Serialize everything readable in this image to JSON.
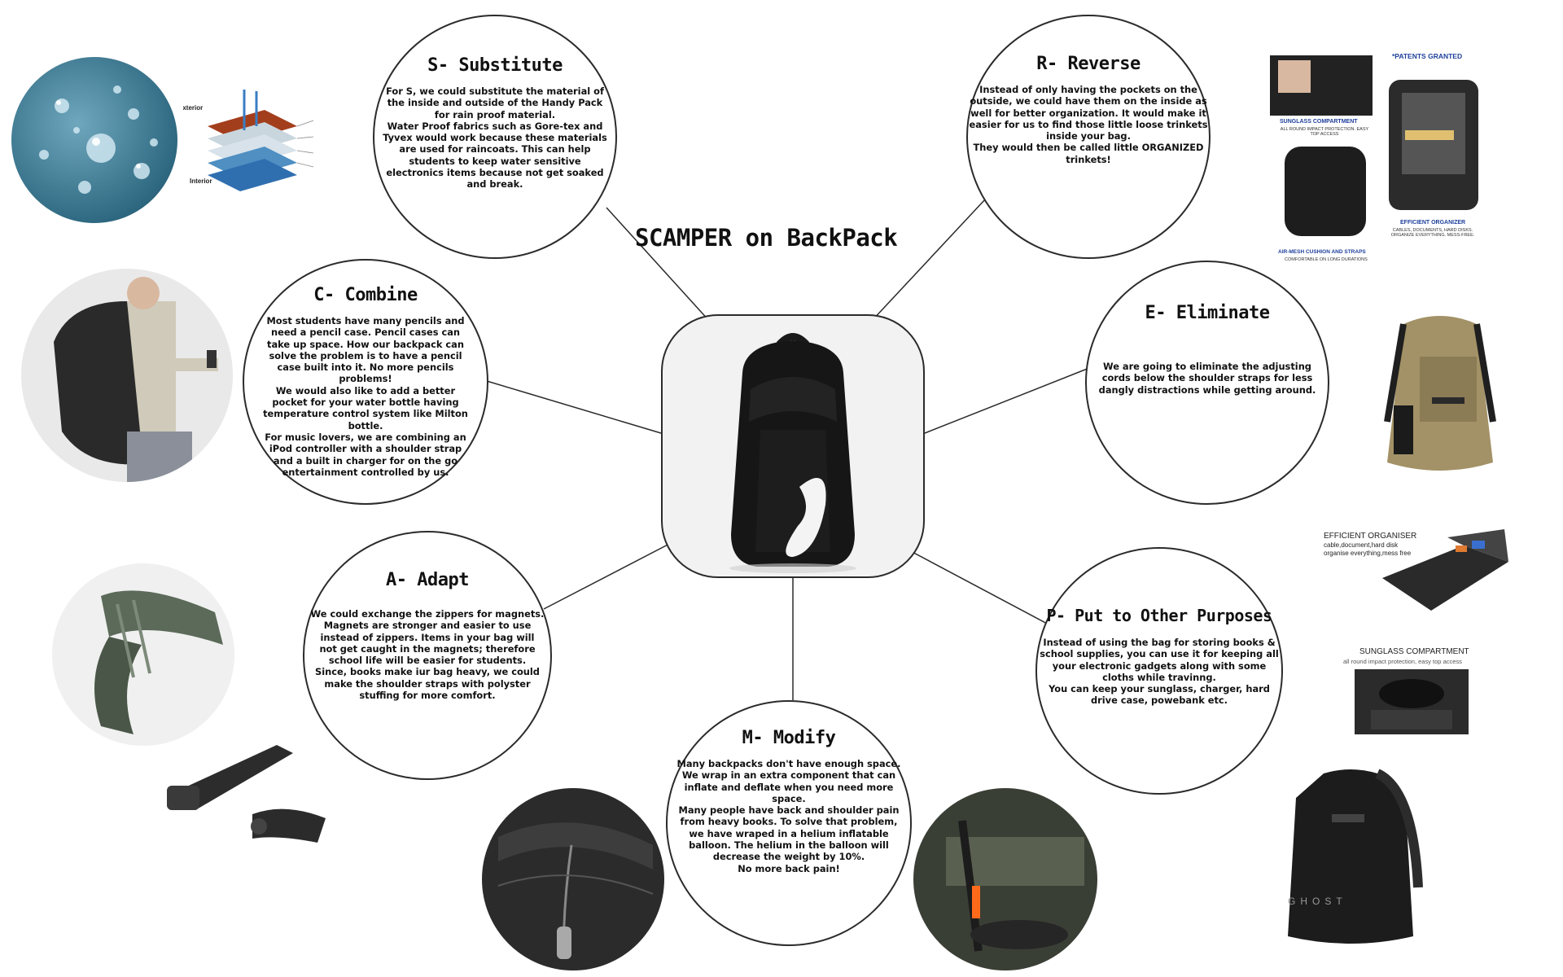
{
  "title": "SCAMPER on BackPack",
  "colors": {
    "outline": "#2b2b2b",
    "text": "#111111",
    "accent_blue": "#1e3f9c"
  },
  "sections": {
    "substitute": {
      "heading": "S- Substitute",
      "lines": [
        "For S, we could substitute the material of",
        "the inside and outside of the Handy Pack",
        "for rain proof material.",
        "Water Proof fabrics such as Gore-tex and",
        "Tyvex would work because these materials",
        "are used for raincoats. This can help",
        "students to keep water sensitive",
        "electronics items because not get soaked",
        "and break."
      ]
    },
    "reverse": {
      "heading": "R- Reverse",
      "lines": [
        "Instead of only having the pockets on the",
        "outside, we could have them on the inside as",
        "well for better organization. It would make it",
        "easier for us to find those little loose trinkets",
        "inside your bag.",
        "They would then be called little ORGANIZED",
        "trinkets!"
      ]
    },
    "combine": {
      "heading": "C- Combine",
      "lines": [
        "Most students have many pencils and",
        "need a pencil case. Pencil cases can",
        "take up space. How our backpack can",
        "solve the problem is to have a pencil",
        "case built into it. No more pencils",
        "problems!",
        "We would also like to add a better",
        "pocket for your water bottle having",
        "temperature control system like Milton",
        "bottle.",
        "For music lovers, we are combining an",
        "iPod controller with a shoulder strap",
        "and a built in charger for on the go",
        "entertainment controlled by us."
      ]
    },
    "eliminate": {
      "heading": "E- Eliminate",
      "lines": [
        "We are going to eliminate the adjusting",
        "cords below the shoulder straps for less",
        "dangly distractions while getting around."
      ]
    },
    "adapt": {
      "heading": "A- Adapt",
      "lines": [
        "We could exchange the zippers for magnets.",
        "Magnets are stronger and easier to use",
        "instead of zippers. Items in your bag will",
        "not get caught in the magnets; therefore",
        "school life will be easier for students.",
        "Since, books make iur bag heavy, we could",
        "make the shoulder straps with polyster",
        "stuffing for more comfort."
      ]
    },
    "modify": {
      "heading": "M- Modify",
      "lines": [
        "Many backpacks don't have enough space.",
        "We wrap in an extra component that can",
        "inflate and deflate when you need more",
        "space.",
        "Many people have back and shoulder pain",
        "from heavy books. To solve that problem,",
        "we have wraped in a helium inflatable",
        "balloon. The helium in the balloon will",
        "decrease the weight by 10%.",
        "No more back pain!"
      ]
    },
    "purposes": {
      "heading": "P- Put to Other Purposes",
      "lines": [
        "Instead of using the bag for storing books &",
        "school supplies, you can use it for keeping all",
        "your electronic gadgets along with some",
        "cloths while travinng.",
        "You can keep your sunglass, charger, hard",
        "drive case, powebank etc."
      ]
    }
  },
  "image_labels": {
    "layers_exterior": "Exterior",
    "layers_interior": "Interior",
    "patents": "*PATENTS GRANTED",
    "sunglass_blue": "SUNGLASS COMPARTMENT",
    "sunglass_blue_sub": "ALL ROUND IMPACT PROTECTION. EASY TOP ACCESS",
    "organizer_blue": "EFFICIENT ORGANIZER",
    "organizer_blue_sub": "CABLES, DOCUMENTS, HARD DISKS. ORGANIZE EVERYTHING. MESS-FREE.",
    "airmesh": "AIR-MESH CUSHION AND STRAPS",
    "airmesh_sub": "COMFORTABLE ON LONG DURATIONS",
    "efficient_organiser": "EFFICIENT ORGANISER",
    "efficient_organiser_sub1": "cable,document,hard disk",
    "efficient_organiser_sub2": "organise everything,mess free",
    "sunglass_grey": "SUNGLASS COMPARTMENT",
    "sunglass_grey_sub": "all round impact protection, easy top access",
    "ghost_brand": "GHOST"
  }
}
